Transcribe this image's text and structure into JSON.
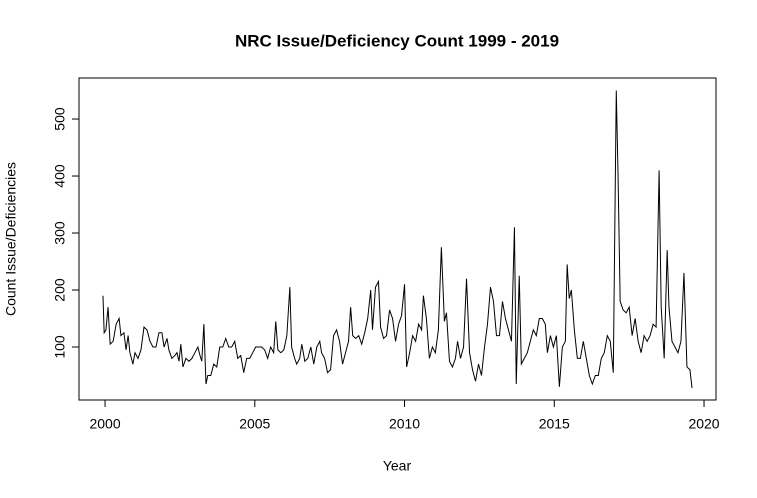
{
  "chart_data": {
    "type": "line",
    "title": "NRC Issue/Deficiency Count 1999 - 2019",
    "x_label": "Year",
    "y_label": "Count Issue/Deficiencies",
    "xlim": [
      1999.13,
      2020.4
    ],
    "ylim": [
      7,
      572
    ],
    "xticks": [
      2000,
      2005,
      2010,
      2015,
      2020
    ],
    "yticks": [
      100,
      200,
      300,
      400,
      500
    ],
    "series": [
      {
        "color": "#000000",
        "x": [
          1999.93,
          1999.97,
          2000.03,
          2000.1,
          2000.17,
          2000.27,
          2000.37,
          2000.47,
          2000.53,
          2000.63,
          2000.7,
          2000.77,
          2000.83,
          2000.93,
          2001.0,
          2001.1,
          2001.2,
          2001.3,
          2001.4,
          2001.5,
          2001.6,
          2001.7,
          2001.8,
          2001.9,
          2001.97,
          2002.07,
          2002.13,
          2002.23,
          2002.33,
          2002.4,
          2002.47,
          2002.53,
          2002.6,
          2002.7,
          2002.8,
          2002.9,
          2003.0,
          2003.1,
          2003.17,
          2003.23,
          2003.3,
          2003.37,
          2003.43,
          2003.53,
          2003.63,
          2003.73,
          2003.83,
          2003.93,
          2004.03,
          2004.13,
          2004.23,
          2004.33,
          2004.43,
          2004.53,
          2004.63,
          2004.73,
          2004.83,
          2004.93,
          2005.03,
          2005.13,
          2005.23,
          2005.33,
          2005.43,
          2005.53,
          2005.63,
          2005.7,
          2005.77,
          2005.87,
          2005.97,
          2006.07,
          2006.17,
          2006.23,
          2006.33,
          2006.4,
          2006.5,
          2006.57,
          2006.67,
          2006.77,
          2006.87,
          2006.97,
          2007.07,
          2007.17,
          2007.23,
          2007.33,
          2007.43,
          2007.53,
          2007.63,
          2007.73,
          2007.83,
          2007.93,
          2008.03,
          2008.13,
          2008.2,
          2008.27,
          2008.37,
          2008.47,
          2008.57,
          2008.67,
          2008.77,
          2008.87,
          2008.93,
          2009.03,
          2009.13,
          2009.2,
          2009.3,
          2009.4,
          2009.5,
          2009.6,
          2009.7,
          2009.8,
          2009.9,
          2010.0,
          2010.07,
          2010.17,
          2010.27,
          2010.37,
          2010.47,
          2010.57,
          2010.63,
          2010.73,
          2010.83,
          2010.93,
          2011.03,
          2011.13,
          2011.23,
          2011.33,
          2011.4,
          2011.5,
          2011.6,
          2011.7,
          2011.77,
          2011.87,
          2011.97,
          2012.07,
          2012.17,
          2012.27,
          2012.37,
          2012.47,
          2012.57,
          2012.67,
          2012.77,
          2012.87,
          2012.97,
          2013.07,
          2013.17,
          2013.27,
          2013.37,
          2013.47,
          2013.57,
          2013.67,
          2013.73,
          2013.83,
          2013.9,
          2014.0,
          2014.1,
          2014.2,
          2014.3,
          2014.4,
          2014.5,
          2014.6,
          2014.7,
          2014.77,
          2014.87,
          2014.97,
          2015.07,
          2015.17,
          2015.27,
          2015.37,
          2015.43,
          2015.5,
          2015.57,
          2015.67,
          2015.77,
          2015.87,
          2015.97,
          2016.07,
          2016.17,
          2016.27,
          2016.37,
          2016.47,
          2016.57,
          2016.67,
          2016.77,
          2016.87,
          2016.97,
          2017.07,
          2017.13,
          2017.2,
          2017.3,
          2017.4,
          2017.5,
          2017.6,
          2017.7,
          2017.8,
          2017.9,
          2018.0,
          2018.1,
          2018.2,
          2018.3,
          2018.4,
          2018.5,
          2018.57,
          2018.67,
          2018.77,
          2018.83,
          2018.93,
          2019.03,
          2019.13,
          2019.23,
          2019.33,
          2019.43,
          2019.53,
          2019.6
        ],
        "values": [
          190,
          125,
          130,
          170,
          105,
          110,
          140,
          150,
          120,
          125,
          95,
          120,
          90,
          70,
          90,
          80,
          95,
          135,
          130,
          110,
          100,
          100,
          125,
          125,
          100,
          115,
          95,
          80,
          85,
          90,
          75,
          105,
          65,
          80,
          75,
          80,
          90,
          100,
          85,
          75,
          140,
          35,
          50,
          50,
          70,
          65,
          100,
          100,
          115,
          100,
          100,
          110,
          80,
          85,
          55,
          80,
          80,
          90,
          100,
          100,
          100,
          95,
          80,
          100,
          90,
          145,
          95,
          90,
          95,
          120,
          205,
          100,
          80,
          70,
          80,
          105,
          75,
          80,
          100,
          70,
          100,
          110,
          90,
          80,
          55,
          60,
          120,
          130,
          110,
          70,
          90,
          110,
          170,
          120,
          115,
          120,
          105,
          125,
          150,
          200,
          130,
          205,
          215,
          135,
          115,
          120,
          165,
          150,
          110,
          140,
          155,
          210,
          65,
          90,
          120,
          110,
          140,
          130,
          190,
          150,
          80,
          100,
          90,
          130,
          275,
          145,
          160,
          75,
          65,
          80,
          110,
          80,
          100,
          220,
          90,
          60,
          40,
          70,
          50,
          100,
          140,
          205,
          180,
          120,
          120,
          180,
          150,
          130,
          110,
          310,
          35,
          225,
          70,
          80,
          90,
          110,
          130,
          120,
          150,
          150,
          140,
          90,
          120,
          100,
          120,
          30,
          100,
          110,
          245,
          185,
          200,
          130,
          80,
          80,
          110,
          80,
          50,
          35,
          50,
          50,
          80,
          90,
          120,
          110,
          55,
          550,
          400,
          180,
          165,
          160,
          170,
          120,
          150,
          110,
          90,
          120,
          110,
          120,
          140,
          135,
          410,
          170,
          80,
          270,
          170,
          110,
          100,
          90,
          110,
          230,
          65,
          60,
          28
        ]
      }
    ]
  }
}
